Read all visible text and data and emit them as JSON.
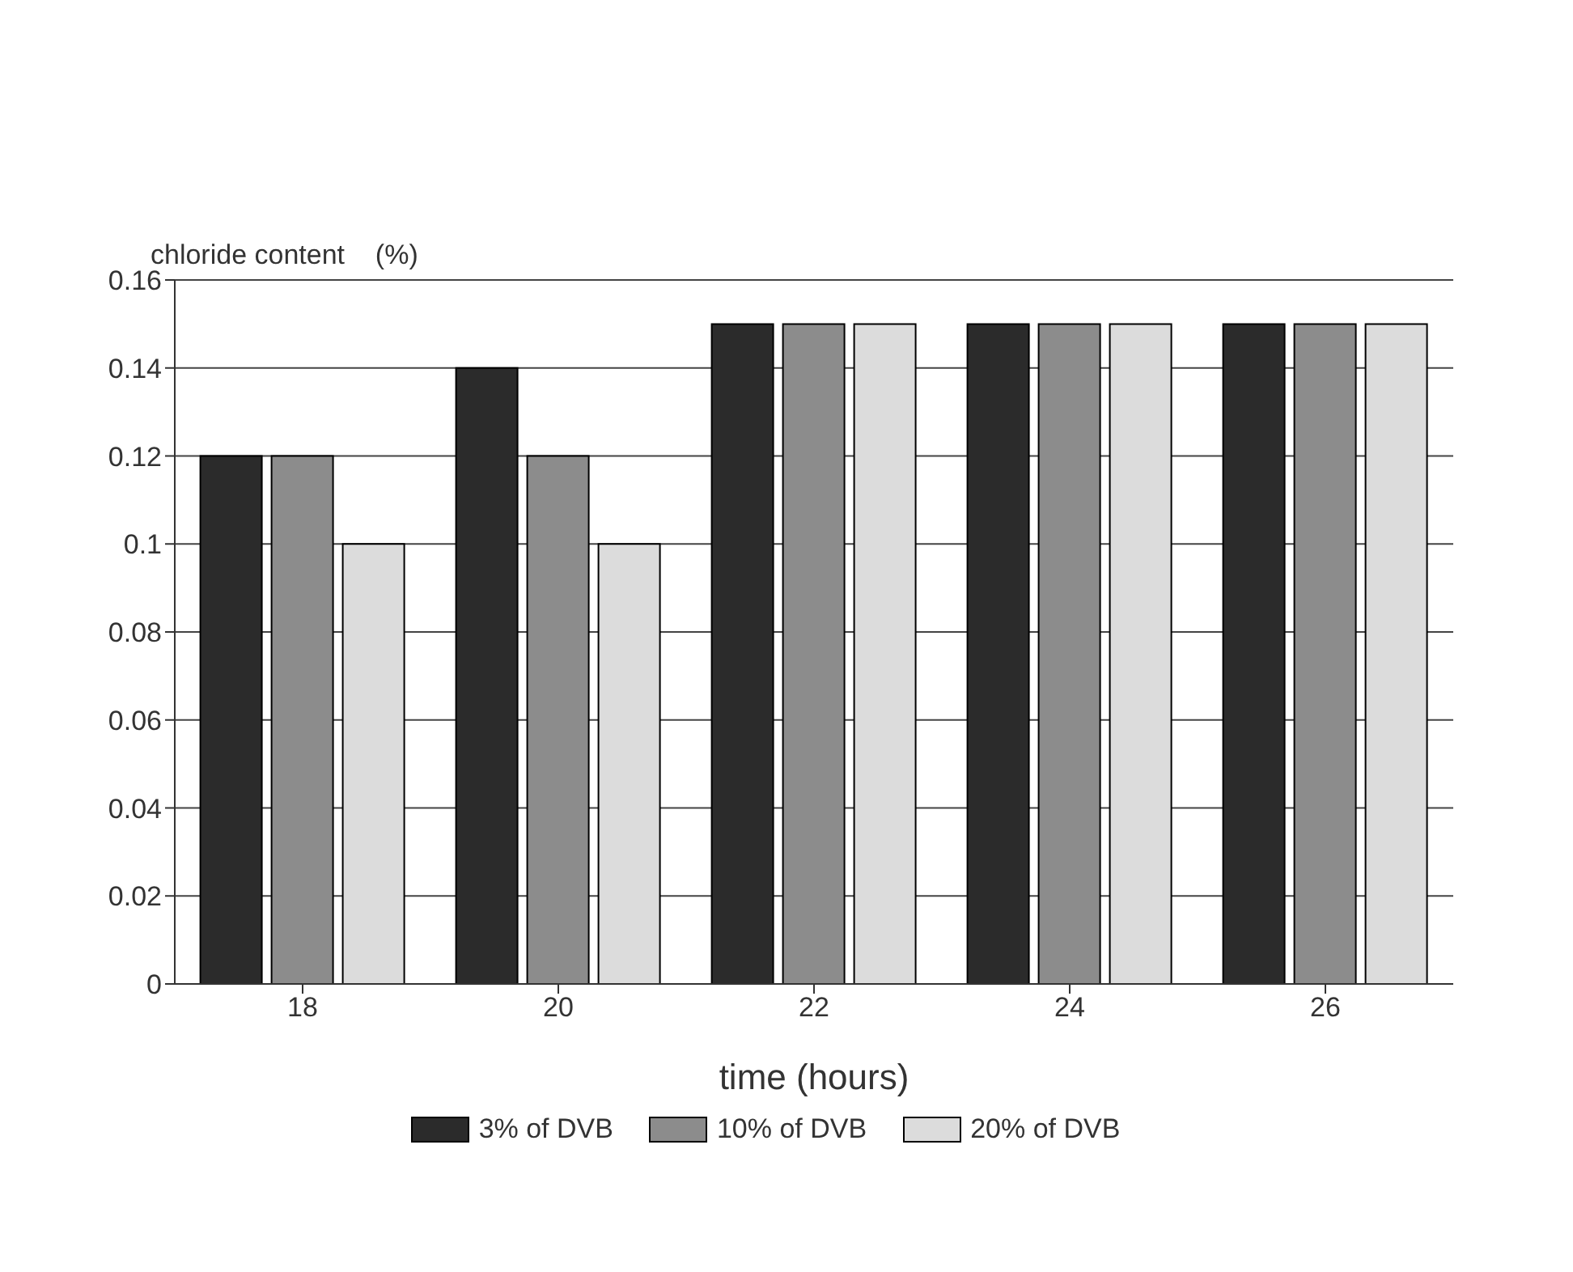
{
  "chart_data": {
    "type": "bar",
    "ylabel": "chloride content    (%)",
    "xlabel": "time (hours)",
    "categories": [
      "18",
      "20",
      "22",
      "24",
      "26"
    ],
    "series": [
      {
        "name": "3% of DVB",
        "color": "#2b2b2b",
        "values": [
          0.12,
          0.14,
          0.15,
          0.15,
          0.15
        ]
      },
      {
        "name": "10% of DVB",
        "color": "#8c8c8c",
        "values": [
          0.12,
          0.12,
          0.15,
          0.15,
          0.15
        ]
      },
      {
        "name": "20% of DVB",
        "color": "#dcdcdc",
        "values": [
          0.1,
          0.1,
          0.15,
          0.15,
          0.15
        ]
      }
    ],
    "ylim": [
      0,
      0.16
    ],
    "yticks": [
      0,
      0.02,
      0.04,
      0.06,
      0.08,
      0.1,
      0.12,
      0.14,
      0.16
    ],
    "grid": "y",
    "legend": "bottom"
  }
}
